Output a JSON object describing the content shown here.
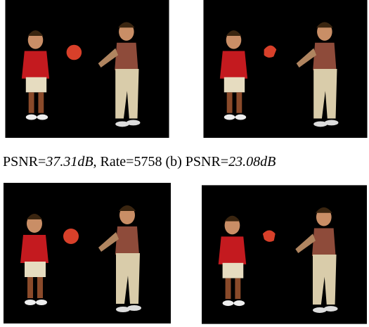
{
  "caption": {
    "prefix": "PSNR=",
    "psnr_a": "37.31dB",
    "middle": ", Rate=5758 (b) PSNR=",
    "psnr_b": "23.08dB"
  }
}
